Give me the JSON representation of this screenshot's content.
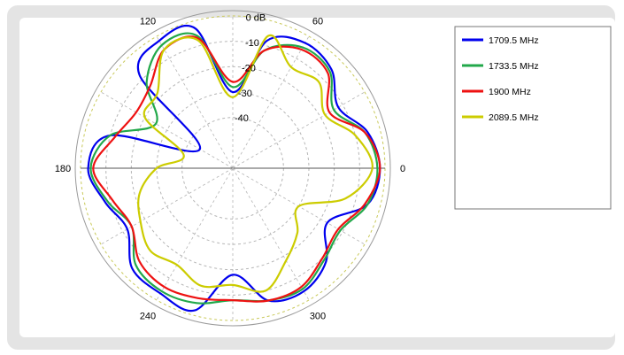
{
  "chart_data": {
    "type": "polar",
    "r_unit": "dB",
    "r_ticks": [
      {
        "value": 0,
        "label": "0 dB"
      },
      {
        "value": -10,
        "label": "-10"
      },
      {
        "value": -20,
        "label": "-20"
      },
      {
        "value": -30,
        "label": "-30"
      },
      {
        "value": -40,
        "label": "-40"
      }
    ],
    "r_range": [
      -60,
      0
    ],
    "angle_ticks": [
      {
        "value": 0,
        "label": "0"
      },
      {
        "value": 60,
        "label": "60"
      },
      {
        "value": 120,
        "label": "120"
      },
      {
        "value": 180,
        "label": "180"
      },
      {
        "value": 240,
        "label": "240"
      },
      {
        "value": 300,
        "label": "300"
      }
    ],
    "grid": true,
    "legend_position": "top-right",
    "angles": [
      0,
      15,
      30,
      45,
      60,
      75,
      90,
      105,
      120,
      135,
      150,
      165,
      180,
      195,
      210,
      225,
      240,
      255,
      270,
      285,
      300,
      315,
      330,
      345
    ],
    "series": [
      {
        "name": "1709.5 MHz",
        "color": "#0000ee",
        "values": [
          -2,
          -5,
          -12,
          -5,
          -3,
          -8,
          -30,
          -3,
          -2,
          -8,
          -45,
          -10,
          -3,
          -8,
          -12,
          -4,
          -3,
          -2,
          -18,
          -6,
          -4,
          -8,
          -17,
          -5
        ]
      },
      {
        "name": "1733.5 MHz",
        "color": "#22a84a",
        "values": [
          -3,
          -6,
          -14,
          -6,
          -5,
          -12,
          -28,
          -6,
          -4,
          -12,
          -25,
          -10,
          -4,
          -9,
          -14,
          -6,
          -4,
          -5,
          -8,
          -6,
          -5,
          -9,
          -11,
          -5
        ]
      },
      {
        "name": "1900 MHz",
        "color": "#ee1111",
        "values": [
          -2,
          -6,
          -16,
          -7,
          -6,
          -12,
          -26,
          -7,
          -6,
          -14,
          -16,
          -12,
          -5,
          -11,
          -14,
          -8,
          -6,
          -7,
          -8,
          -6,
          -6,
          -10,
          -12,
          -6
        ]
      },
      {
        "name": "2089.5 MHz",
        "color": "#cccc00",
        "values": [
          -5,
          -10,
          -18,
          -12,
          -14,
          -6,
          -32,
          -8,
          -6,
          -18,
          -20,
          -40,
          -30,
          -22,
          -18,
          -14,
          -16,
          -12,
          -14,
          -10,
          -18,
          -24,
          -30,
          -14
        ]
      }
    ]
  }
}
